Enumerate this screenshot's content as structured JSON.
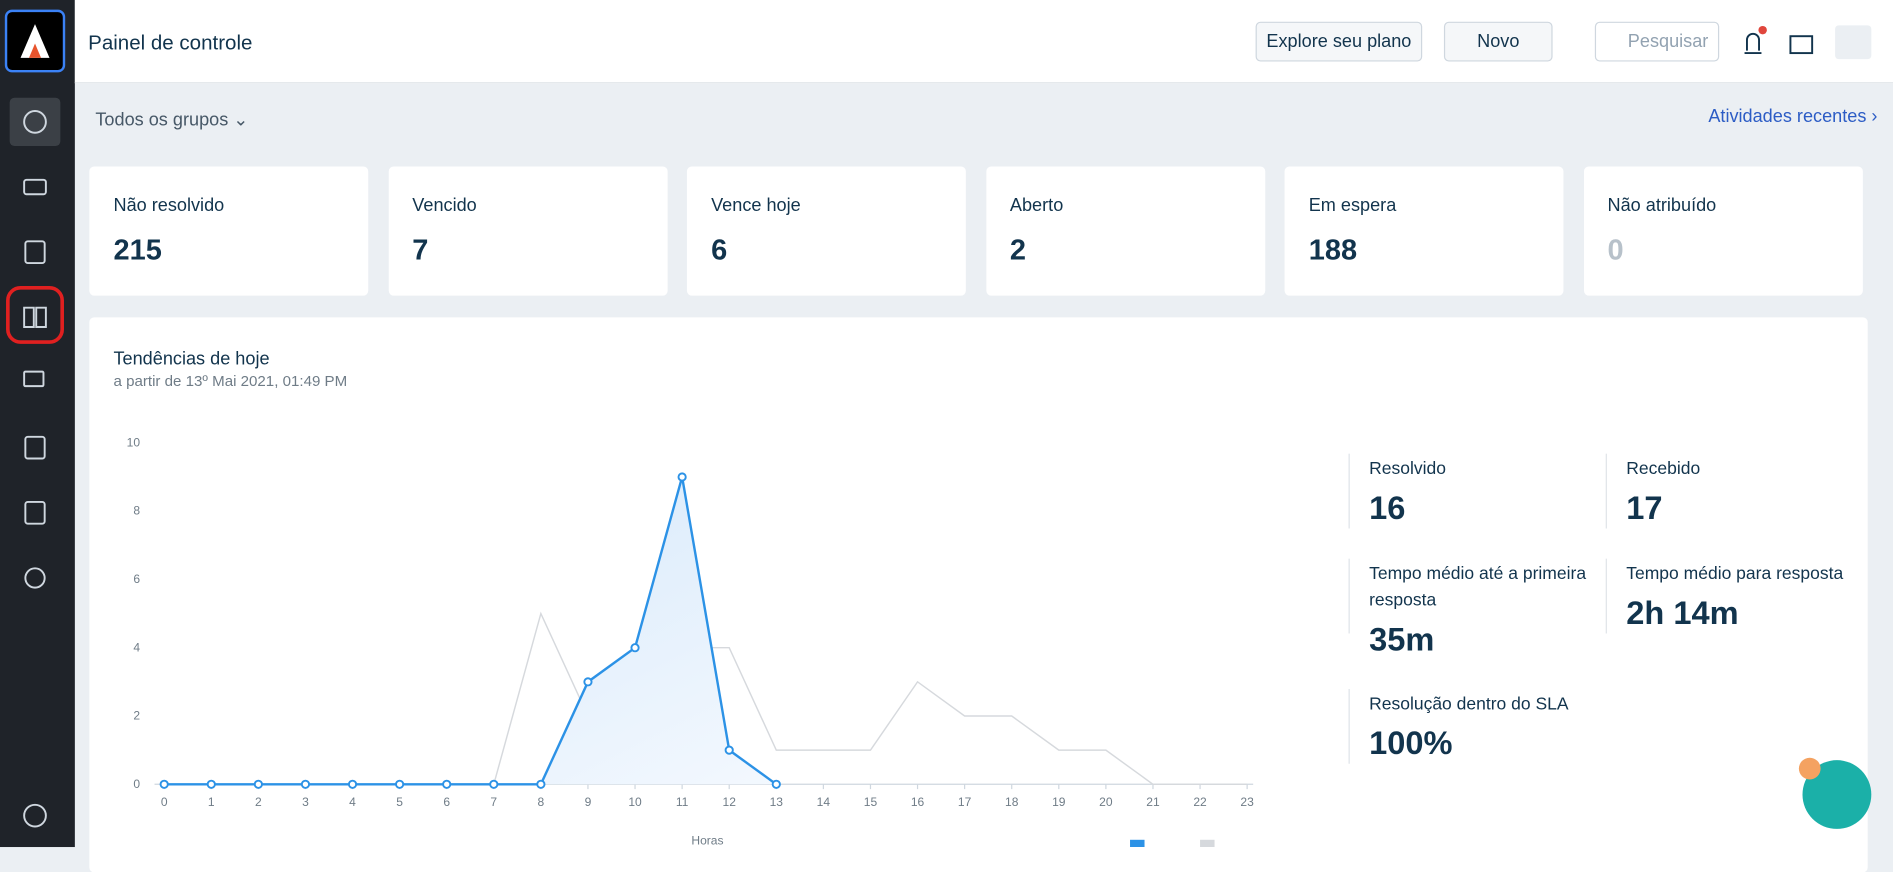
{
  "header": {
    "title": "Painel de controle",
    "explore": "Explore seu plano",
    "new": "Novo",
    "search": "Pesquisar"
  },
  "filter": {
    "groups": "Todos os grupos",
    "recent": "Atividades recentes"
  },
  "cards": [
    {
      "label": "Não resolvido",
      "value": 215
    },
    {
      "label": "Vencido",
      "value": 7
    },
    {
      "label": "Vence hoje",
      "value": 6
    },
    {
      "label": "Aberto",
      "value": 2
    },
    {
      "label": "Em espera",
      "value": 188
    },
    {
      "label": "Não atribuído",
      "value": 0
    }
  ],
  "chart_data": {
    "type": "line",
    "title": "Tendências de hoje",
    "subtitle": "a partir de 13º Mai 2021, 01:49 PM",
    "x_label": "Horas",
    "x": [
      0,
      1,
      2,
      3,
      4,
      5,
      6,
      7,
      8,
      9,
      10,
      11,
      12,
      13,
      14,
      15,
      16,
      17,
      18,
      19,
      20,
      21,
      22,
      23
    ],
    "xlim": [
      0,
      23
    ],
    "xticks": [
      0,
      1,
      2,
      3,
      4,
      5,
      6,
      7,
      8,
      9,
      10,
      11,
      12,
      13,
      14,
      15,
      16,
      17,
      18,
      19,
      20,
      21,
      22,
      23
    ],
    "ylim": [
      0,
      10
    ],
    "yticks": [
      0,
      2,
      4,
      6,
      8,
      10
    ],
    "series": [
      {
        "color": "#d6d9dd",
        "values": [
          0,
          0,
          0,
          0,
          0,
          0,
          0,
          0,
          5,
          2,
          1,
          4,
          4,
          1,
          1,
          1,
          3,
          2,
          2,
          1,
          1,
          0,
          0,
          0
        ]
      },
      {
        "color": "#2c92e6",
        "values": [
          0,
          0,
          0,
          0,
          0,
          0,
          0,
          0,
          0,
          3,
          4,
          9,
          1,
          0,
          null,
          null,
          null,
          null,
          null,
          null,
          null,
          null,
          null,
          null
        ]
      }
    ]
  },
  "stats": [
    {
      "label": "Resolvido",
      "value": "16"
    },
    {
      "label": "Recebido",
      "value": "17"
    },
    {
      "label": "Tempo médio até a primeira resposta",
      "value": "35m"
    },
    {
      "label": "Tempo médio para resposta",
      "value": "2h 14m"
    },
    {
      "label": "Resolução dentro do SLA",
      "value": "100%"
    }
  ]
}
